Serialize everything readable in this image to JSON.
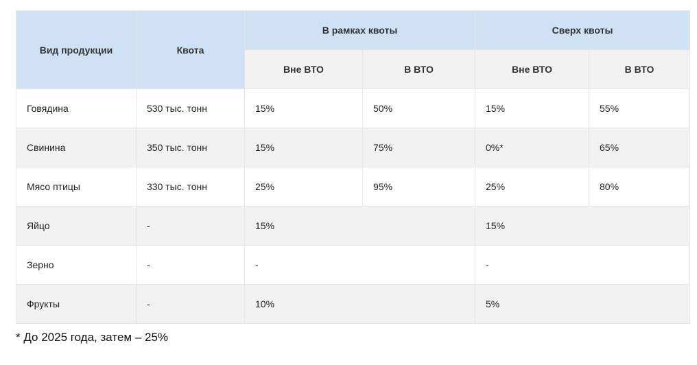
{
  "table": {
    "headers": {
      "product": "Вид продукции",
      "quota": "Квота",
      "within_quota": "В рамках квоты",
      "above_quota": "Сверх квоты",
      "sub": [
        "Вне ВТО",
        "В ВТО",
        "Вне ВТО",
        "В ВТО"
      ]
    },
    "rows": [
      {
        "product": "Говядина",
        "quota": "530 тыс. тонн",
        "in_non_wto": "15%",
        "in_wto": "50%",
        "over_non_wto": "15%",
        "over_wto": "55%"
      },
      {
        "product": "Свинина",
        "quota": "350 тыс. тонн",
        "in_non_wto": "15%",
        "in_wto": "75%",
        "over_non_wto": "0%*",
        "over_wto": "65%"
      },
      {
        "product": "Мясо птицы",
        "quota": "330 тыс. тонн",
        "in_non_wto": "25%",
        "in_wto": "95%",
        "over_non_wto": "25%",
        "over_wto": "80%"
      },
      {
        "product": "Яйцо",
        "quota": "-",
        "in_all": "15%",
        "over_all": "15%"
      },
      {
        "product": "Зерно",
        "quota": "-",
        "in_all": "-",
        "over_all": "-"
      },
      {
        "product": "Фрукты",
        "quota": "-",
        "in_all": "10%",
        "over_all": "5%"
      }
    ]
  },
  "footnote": "* До 2025 года, затем – 25%"
}
